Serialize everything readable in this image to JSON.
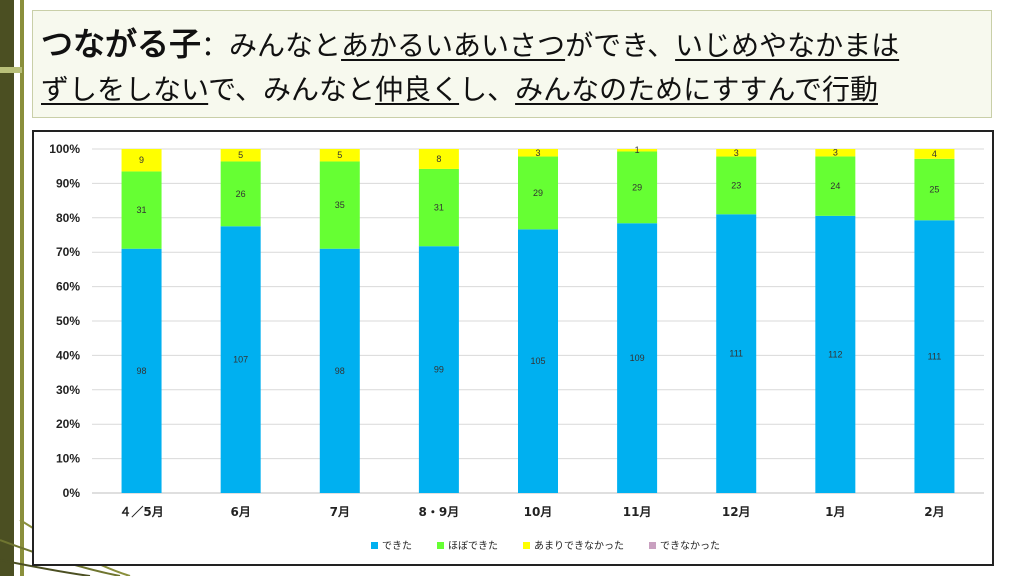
{
  "title": {
    "strong": "つながる子",
    "sep": "：",
    "p1": "みんなと",
    "u1": "あかるいあいさつ",
    "p2": "ができ、",
    "u2": "いじめやなかまは",
    "u3": "ずしをしない",
    "p3": "で、みんなと",
    "u4": "仲良く",
    "p4": "し、",
    "u5": "みんなのためにすすんで行動"
  },
  "chart_data": {
    "type": "bar",
    "stacked": "percent",
    "categories": [
      "４／5月",
      "6月",
      "7月",
      "8・9月",
      "10月",
      "11月",
      "12月",
      "1月",
      "2月"
    ],
    "series": [
      {
        "name": "できた",
        "color": "#00b0f0",
        "values": [
          98,
          107,
          98,
          99,
          105,
          109,
          111,
          112,
          111
        ]
      },
      {
        "name": "ほぼできた",
        "color": "#66ff33",
        "values": [
          31,
          26,
          35,
          31,
          29,
          29,
          23,
          24,
          25
        ]
      },
      {
        "name": "あまりできなかった",
        "color": "#ffff00",
        "values": [
          9,
          5,
          5,
          8,
          3,
          1,
          3,
          3,
          4
        ]
      },
      {
        "name": "できなかった",
        "color": "#c9a0c0",
        "values": [
          0,
          0,
          0,
          0,
          0,
          0,
          0,
          0,
          0
        ]
      }
    ],
    "yticks": [
      "0%",
      "10%",
      "20%",
      "30%",
      "40%",
      "50%",
      "60%",
      "70%",
      "80%",
      "90%",
      "100%"
    ],
    "ylim": [
      0,
      100
    ],
    "grid": true,
    "legend": "bottom"
  }
}
